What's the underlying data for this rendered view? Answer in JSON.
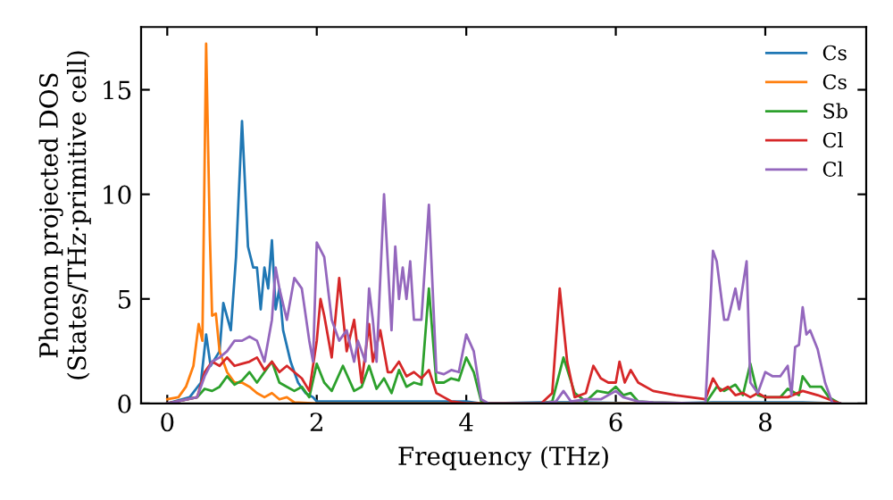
{
  "chart_data": {
    "type": "line",
    "xlabel": "Frequency (THz)",
    "ylabel": "Phonon projected DOS\n(States/THz·primitive cell)",
    "xlim": [
      -0.35,
      9.35
    ],
    "ylim": [
      0,
      18
    ],
    "xticks": [
      0,
      2,
      4,
      6,
      8
    ],
    "yticks": [
      0,
      5,
      10,
      15
    ],
    "grid": false,
    "legend": "top right",
    "marker": "none",
    "line_style": "solid",
    "series": [
      {
        "name": "Cs",
        "color": "#1f77b4",
        "x": [
          0,
          0.3,
          0.45,
          0.52,
          0.58,
          0.7,
          0.75,
          0.85,
          0.92,
          1.0,
          1.08,
          1.15,
          1.2,
          1.25,
          1.3,
          1.35,
          1.4,
          1.45,
          1.5,
          1.55,
          1.65,
          1.75,
          1.85,
          1.95,
          2.0,
          2.3,
          3.0,
          4.0,
          4.2,
          5.0,
          5.5,
          6.5,
          7.3,
          8.5,
          9.0
        ],
        "values": [
          0,
          0.3,
          1,
          3.3,
          1.8,
          2.5,
          4.8,
          3.5,
          7,
          13.5,
          7.5,
          6.5,
          6.5,
          4.5,
          6.5,
          5.5,
          7.8,
          4.5,
          5.5,
          3.5,
          2,
          1.0,
          0.5,
          0.3,
          0.1,
          0.1,
          0.1,
          0.1,
          0,
          0.05,
          0.05,
          0,
          0.05,
          0.05,
          0
        ]
      },
      {
        "name": "Cs",
        "color": "#ff7f0e",
        "x": [
          0,
          0.15,
          0.25,
          0.35,
          0.42,
          0.47,
          0.52,
          0.57,
          0.6,
          0.65,
          0.7,
          0.8,
          0.9,
          1.0,
          1.1,
          1.2,
          1.3,
          1.4,
          1.5,
          1.6,
          1.7,
          2.0,
          9.0
        ],
        "values": [
          0.2,
          0.3,
          0.8,
          1.8,
          3.8,
          3.0,
          17.2,
          8,
          4.2,
          4.3,
          2.5,
          1.5,
          1.0,
          1.0,
          0.8,
          0.5,
          0.3,
          0.5,
          0.2,
          0.3,
          0.05,
          0,
          0
        ]
      },
      {
        "name": "Sb",
        "color": "#2ca02c",
        "x": [
          0,
          0.4,
          0.5,
          0.6,
          0.7,
          0.8,
          0.9,
          1.0,
          1.1,
          1.2,
          1.3,
          1.4,
          1.5,
          1.6,
          1.7,
          1.8,
          1.9,
          2.0,
          2.1,
          2.2,
          2.35,
          2.5,
          2.6,
          2.7,
          2.8,
          2.9,
          3.0,
          3.1,
          3.2,
          3.3,
          3.4,
          3.5,
          3.6,
          3.7,
          3.8,
          3.9,
          4.0,
          4.1,
          4.2,
          4.3,
          5.0,
          5.15,
          5.3,
          5.45,
          5.6,
          5.75,
          5.9,
          6.0,
          6.1,
          6.2,
          6.3,
          6.5,
          7.2,
          7.35,
          7.45,
          7.6,
          7.7,
          7.8,
          7.9,
          8.0,
          8.2,
          8.3,
          8.45,
          8.5,
          8.6,
          8.75,
          8.85,
          9.0
        ],
        "values": [
          0,
          0.3,
          0.7,
          0.6,
          0.8,
          1.3,
          0.9,
          1.1,
          1.5,
          1.0,
          1.5,
          2.0,
          1.0,
          0.8,
          0.6,
          0.8,
          0.3,
          1.9,
          1.0,
          0.6,
          1.8,
          0.6,
          0.8,
          1.8,
          0.7,
          1.2,
          0.5,
          1.6,
          0.8,
          1.0,
          0.9,
          5.5,
          1.0,
          1.0,
          1.2,
          1.1,
          2.2,
          1.5,
          0.1,
          0,
          0,
          0.1,
          2.2,
          0.5,
          0.1,
          0.6,
          0.5,
          0.8,
          0.4,
          0.5,
          0.1,
          0.05,
          0,
          0.8,
          0.6,
          0.9,
          0.4,
          1.9,
          0.4,
          0.3,
          0.3,
          0.7,
          0.4,
          1.3,
          0.8,
          0.8,
          0.3,
          0
        ]
      },
      {
        "name": "Cl",
        "color": "#d62728",
        "x": [
          0,
          0.4,
          0.5,
          0.6,
          0.7,
          0.8,
          0.9,
          1.0,
          1.1,
          1.2,
          1.3,
          1.4,
          1.5,
          1.6,
          1.7,
          1.8,
          1.9,
          2.0,
          2.05,
          2.1,
          2.2,
          2.3,
          2.4,
          2.5,
          2.6,
          2.7,
          2.75,
          2.85,
          2.95,
          3.0,
          3.1,
          3.2,
          3.3,
          3.4,
          3.5,
          3.6,
          3.7,
          3.8,
          4.0,
          5.0,
          5.15,
          5.25,
          5.35,
          5.45,
          5.6,
          5.7,
          5.8,
          5.9,
          6.0,
          6.05,
          6.12,
          6.2,
          6.3,
          6.5,
          6.8,
          7.0,
          7.2,
          7.3,
          7.4,
          7.5,
          7.6,
          7.7,
          7.8,
          7.9,
          8.0,
          8.3,
          8.5,
          8.7,
          8.85,
          9.0
        ],
        "values": [
          0,
          0.3,
          1.5,
          2.0,
          1.8,
          2.2,
          1.8,
          1.9,
          2.0,
          2.2,
          1.6,
          2.0,
          1.5,
          1.8,
          1.5,
          1.2,
          0.6,
          3.0,
          5.0,
          4.2,
          2.2,
          6.0,
          2.5,
          4.0,
          1.0,
          3.8,
          2.0,
          3.5,
          1.5,
          1.5,
          2.0,
          1.3,
          1.5,
          1.2,
          1.6,
          0.5,
          0.3,
          0.1,
          0,
          0,
          0.5,
          5.5,
          2.0,
          0.3,
          0.5,
          1.8,
          1.2,
          1.0,
          1.0,
          2.0,
          1.0,
          1.6,
          1.0,
          0.6,
          0.4,
          0.3,
          0.2,
          1.2,
          0.6,
          0.8,
          0.4,
          0.5,
          0.3,
          0.5,
          0.3,
          0.3,
          0.6,
          0.4,
          0.2,
          0
        ]
      },
      {
        "name": "Cl",
        "color": "#9467bd",
        "x": [
          0,
          0.4,
          0.5,
          0.6,
          0.7,
          0.8,
          0.9,
          1.0,
          1.1,
          1.2,
          1.3,
          1.4,
          1.45,
          1.5,
          1.6,
          1.7,
          1.8,
          1.9,
          1.95,
          2.0,
          2.1,
          2.2,
          2.3,
          2.4,
          2.5,
          2.55,
          2.65,
          2.7,
          2.75,
          2.8,
          2.9,
          3.0,
          3.05,
          3.1,
          3.15,
          3.2,
          3.25,
          3.3,
          3.4,
          3.5,
          3.6,
          3.7,
          3.8,
          3.9,
          4.0,
          4.1,
          4.2,
          4.3,
          5.0,
          5.2,
          5.3,
          5.4,
          5.6,
          5.8,
          6.0,
          6.1,
          6.3,
          6.5,
          7.2,
          7.3,
          7.35,
          7.45,
          7.5,
          7.6,
          7.65,
          7.75,
          7.8,
          7.9,
          8.0,
          8.1,
          8.2,
          8.3,
          8.35,
          8.4,
          8.45,
          8.5,
          8.55,
          8.6,
          8.7,
          8.8,
          8.9,
          9.0
        ],
        "values": [
          0,
          0.3,
          1.3,
          2.0,
          2.2,
          2.5,
          3.0,
          3.0,
          3.2,
          3.0,
          2.0,
          4.0,
          6.5,
          5.5,
          4.0,
          6.0,
          5.5,
          3.0,
          2.0,
          7.7,
          7.0,
          4.0,
          3.0,
          3.5,
          2.0,
          3.0,
          2.0,
          5.5,
          4.0,
          2.0,
          10.0,
          3.5,
          7.5,
          5.0,
          6.5,
          5.0,
          6.8,
          4.0,
          4.0,
          9.5,
          1.5,
          1.4,
          1.6,
          1.5,
          3.3,
          2.5,
          0.2,
          0,
          0,
          0.1,
          0.6,
          0.1,
          0.2,
          0.2,
          0.6,
          0.3,
          0.1,
          0.05,
          0,
          7.3,
          6.8,
          4.0,
          4.0,
          5.5,
          4.5,
          6.8,
          1.0,
          0.5,
          1.5,
          1.3,
          1.3,
          1.8,
          0.4,
          2.7,
          2.8,
          4.6,
          3.3,
          3.5,
          2.6,
          1.0,
          0,
          0
        ]
      }
    ]
  }
}
